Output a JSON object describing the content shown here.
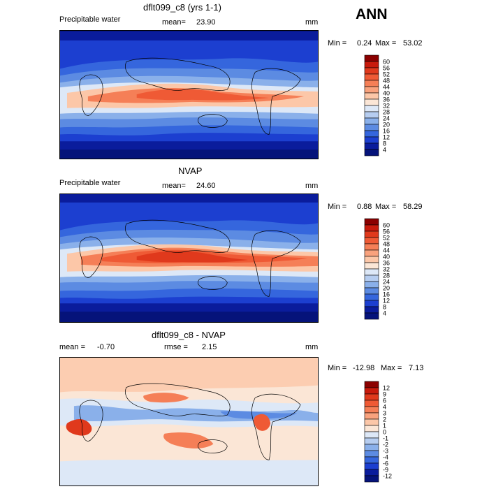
{
  "season": "ANN",
  "panels": [
    {
      "title": "dflt099_c8 (yrs 1-1)",
      "left_label": "Precipitable water",
      "center_label": "mean=",
      "center_value": "23.90",
      "right_label": "mm",
      "stats": {
        "min_label": "Min =",
        "min": "0.24",
        "max_label": "Max =",
        "max": "53.02"
      },
      "colorbar": {
        "labels": [
          "60",
          "56",
          "52",
          "48",
          "44",
          "40",
          "36",
          "32",
          "28",
          "24",
          "20",
          "16",
          "12",
          "8",
          "4"
        ],
        "colors": [
          "#8b0000",
          "#c81a0c",
          "#e0391c",
          "#ef5a35",
          "#f57f57",
          "#f9a27d",
          "#fcc7a8",
          "#fbe6d6",
          "#dde8f7",
          "#b6cdf0",
          "#8ab0ea",
          "#5c8be2",
          "#3566dd",
          "#1c3fd0",
          "#0a1c9c",
          "#05137a"
        ]
      }
    },
    {
      "title": "NVAP",
      "left_label": "Precipitable water",
      "center_label": "mean=",
      "center_value": "24.60",
      "right_label": "mm",
      "stats": {
        "min_label": "Min =",
        "min": "0.88",
        "max_label": "Max =",
        "max": "58.29"
      },
      "colorbar": {
        "labels": [
          "60",
          "56",
          "52",
          "48",
          "44",
          "40",
          "36",
          "32",
          "28",
          "24",
          "20",
          "16",
          "12",
          "8",
          "4"
        ],
        "colors": [
          "#8b0000",
          "#c81a0c",
          "#e0391c",
          "#ef5a35",
          "#f57f57",
          "#f9a27d",
          "#fcc7a8",
          "#fbe6d6",
          "#dde8f7",
          "#b6cdf0",
          "#8ab0ea",
          "#5c8be2",
          "#3566dd",
          "#1c3fd0",
          "#0a1c9c",
          "#05137a"
        ]
      }
    },
    {
      "title": "dflt099_c8 - NVAP",
      "left_label": "mean =",
      "left_value": "-0.70",
      "center_label": "rmse =",
      "center_value": "2.15",
      "right_label": "mm",
      "stats": {
        "min_label": "Min =",
        "min": "-12.98",
        "max_label": "Max =",
        "max": "7.13"
      },
      "colorbar": {
        "labels": [
          "12",
          "9",
          "6",
          "4",
          "3",
          "2",
          "1",
          "0",
          "-1",
          "-2",
          "-3",
          "-4",
          "-6",
          "-9",
          "-12"
        ],
        "colors": [
          "#8b0000",
          "#c81a0c",
          "#e0391c",
          "#ef5a35",
          "#f57f57",
          "#f9a27d",
          "#fcc7a8",
          "#fbe6d6",
          "#dde8f7",
          "#b6cdf0",
          "#8ab0ea",
          "#5c8be2",
          "#3566dd",
          "#1c3fd0",
          "#0a1c9c",
          "#05137a"
        ]
      }
    }
  ]
}
